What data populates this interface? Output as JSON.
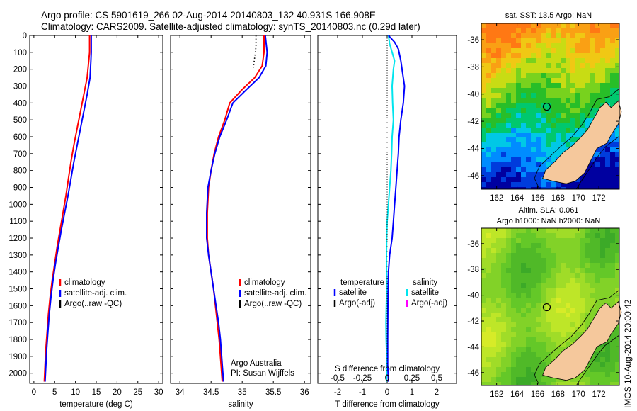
{
  "header": {
    "line1": "Argo profile: CS 5901619_266 02-Aug-2014 20140803_132 40.931S 166.908E",
    "line2": "Climatology: CARS2009. Satellite-adjusted climatology: synTS_20140803.nc (0.29d later)"
  },
  "timestamp": "IMOS 10-Aug-2014 20:00:42",
  "colors": {
    "climatology": "#ff0000",
    "satellite": "#0000ff",
    "argo": "#000000",
    "satellite_s": "#00e5ee",
    "argo_s_adj": "#ff00ff"
  },
  "chart_data": [
    {
      "type": "line",
      "xlabel": "temperature (deg C)",
      "xticks": [
        0,
        5,
        10,
        15,
        20,
        25,
        30
      ],
      "xlim": [
        -1,
        31
      ],
      "yticks": [
        0,
        100,
        200,
        300,
        400,
        500,
        600,
        700,
        800,
        900,
        1000,
        1100,
        1200,
        1300,
        1400,
        1500,
        1600,
        1700,
        1800,
        1900,
        2000
      ],
      "ylim": [
        2060,
        0
      ],
      "legend": [
        "climatology",
        "satellite-adj. clim.",
        "Argo(..raw -QC)"
      ],
      "series": [
        {
          "color": "#ff0000",
          "x": [
            13.4,
            13.4,
            13.2,
            12.8,
            12.0,
            11.2,
            10.4,
            9.6,
            8.9,
            8.3,
            7.7,
            7.0,
            6.3,
            5.6,
            5.0,
            4.4,
            3.9,
            3.5,
            3.2,
            2.9,
            2.7,
            2.6,
            2.5
          ],
          "y": [
            0,
            100,
            150,
            250,
            350,
            450,
            550,
            650,
            750,
            850,
            950,
            1050,
            1150,
            1250,
            1350,
            1450,
            1550,
            1650,
            1750,
            1850,
            1950,
            2000,
            2050
          ]
        },
        {
          "color": "#0000ff",
          "x": [
            13.8,
            13.8,
            13.7,
            13.5,
            12.8,
            12.0,
            11.2,
            10.4,
            9.6,
            8.9,
            8.2,
            7.4,
            6.6,
            5.9,
            5.2,
            4.6,
            4.1,
            3.7,
            3.4,
            3.1,
            2.9,
            2.8,
            2.7
          ],
          "y": [
            0,
            100,
            150,
            250,
            350,
            450,
            550,
            650,
            750,
            850,
            950,
            1050,
            1150,
            1250,
            1350,
            1450,
            1550,
            1650,
            1750,
            1850,
            1950,
            2000,
            2050
          ]
        }
      ]
    },
    {
      "type": "line",
      "xlabel": "salinity",
      "xticks": [
        34,
        34.5,
        35,
        35.5,
        36
      ],
      "xlim": [
        33.85,
        36.1
      ],
      "ylim": [
        2060,
        0
      ],
      "legend": [
        "climatology",
        "satellite-adj. clim.",
        "Argo(..raw -QC)"
      ],
      "annotation": [
        "Argo Australia",
        "PI: Susan Wijffels"
      ],
      "series": [
        {
          "color": "#ff0000",
          "x": [
            35.35,
            35.35,
            35.32,
            35.2,
            35.0,
            34.8,
            34.72,
            34.62,
            34.55,
            34.5,
            34.46,
            34.44,
            34.44,
            34.46,
            34.5,
            34.54,
            34.57,
            34.6,
            34.63,
            34.66,
            34.68
          ],
          "y": [
            0,
            100,
            180,
            250,
            320,
            400,
            500,
            600,
            700,
            800,
            900,
            1050,
            1200,
            1300,
            1400,
            1500,
            1600,
            1700,
            1800,
            1950,
            2050
          ]
        },
        {
          "color": "#0000ff",
          "x": [
            35.37,
            35.4,
            35.38,
            35.27,
            35.07,
            34.85,
            34.75,
            34.64,
            34.56,
            34.5,
            34.45,
            34.43,
            34.43,
            34.46,
            34.5,
            34.54,
            34.58,
            34.62,
            34.65,
            34.68,
            34.7
          ],
          "y": [
            0,
            100,
            180,
            250,
            320,
            400,
            500,
            600,
            700,
            800,
            900,
            1050,
            1200,
            1300,
            1400,
            1500,
            1600,
            1700,
            1800,
            1950,
            2050
          ]
        },
        {
          "color": "#000000",
          "dotted": true,
          "x": [
            35.22,
            35.22,
            35.2,
            35.18
          ],
          "y": [
            0,
            70,
            130,
            190
          ]
        }
      ]
    },
    {
      "type": "line",
      "xlabel": "T difference from climatology",
      "xlabel2": "S difference from climatology",
      "xticks": [
        -2,
        -1,
        0,
        1,
        2
      ],
      "xticks2": [
        "-0.5",
        "-0.25",
        "0",
        "0.25",
        "0.5"
      ],
      "xlim": [
        -2.8,
        2.8
      ],
      "ylim": [
        2060,
        0
      ],
      "legend_left": [
        "temperature",
        "satellite",
        "Argo(-adj)"
      ],
      "legend_right": [
        "salinity",
        "satellite",
        "Argo(-adj)"
      ],
      "series": [
        {
          "color": "#00e5ee",
          "x": [
            0.05,
            0.1,
            0.2,
            0.3,
            0.25,
            0.2,
            0.22,
            0.25,
            0.2,
            0.18,
            0.15,
            0.1,
            0.05,
            0.0,
            -0.02,
            -0.03,
            -0.02,
            -0.05,
            -0.04,
            -0.02,
            -0.03
          ],
          "y": [
            0,
            50,
            100,
            150,
            200,
            300,
            400,
            500,
            600,
            700,
            800,
            900,
            1000,
            1100,
            1200,
            1300,
            1500,
            1700,
            1800,
            1900,
            2050
          ]
        },
        {
          "color": "#0000ff",
          "x": [
            0.05,
            0.3,
            0.45,
            0.55,
            0.6,
            0.7,
            0.65,
            0.55,
            0.48,
            0.45,
            0.4,
            0.35,
            0.3,
            0.25,
            0.2,
            0.1,
            0.05,
            0.04,
            0.03,
            0.02,
            0.02,
            0.05
          ],
          "y": [
            0,
            40,
            80,
            150,
            200,
            300,
            400,
            500,
            600,
            700,
            800,
            900,
            1000,
            1100,
            1200,
            1300,
            1400,
            1500,
            1600,
            1800,
            1950,
            2050
          ]
        }
      ]
    },
    {
      "type": "heatmap",
      "title": "sat. SST: 13.5 Argo: NaN",
      "xticks": [
        162,
        164,
        166,
        168,
        170,
        172
      ],
      "yticks": [
        -36,
        -38,
        -40,
        -42,
        -44,
        -46
      ],
      "xlim": [
        160.5,
        174
      ],
      "ylim": [
        -47,
        -34.8
      ],
      "marker": {
        "lon": 166.9,
        "lat": -40.93
      }
    },
    {
      "type": "heatmap",
      "title": "Altim. SLA: 0.061",
      "title2": "Argo h1000: NaN h2000: NaN",
      "xticks": [
        162,
        164,
        166,
        168,
        170,
        172
      ],
      "yticks": [
        -36,
        -38,
        -40,
        -42,
        -44,
        -46
      ],
      "xlim": [
        160.5,
        174
      ],
      "ylim": [
        -47,
        -34.8
      ],
      "marker": {
        "lon": 166.9,
        "lat": -40.93
      }
    }
  ]
}
